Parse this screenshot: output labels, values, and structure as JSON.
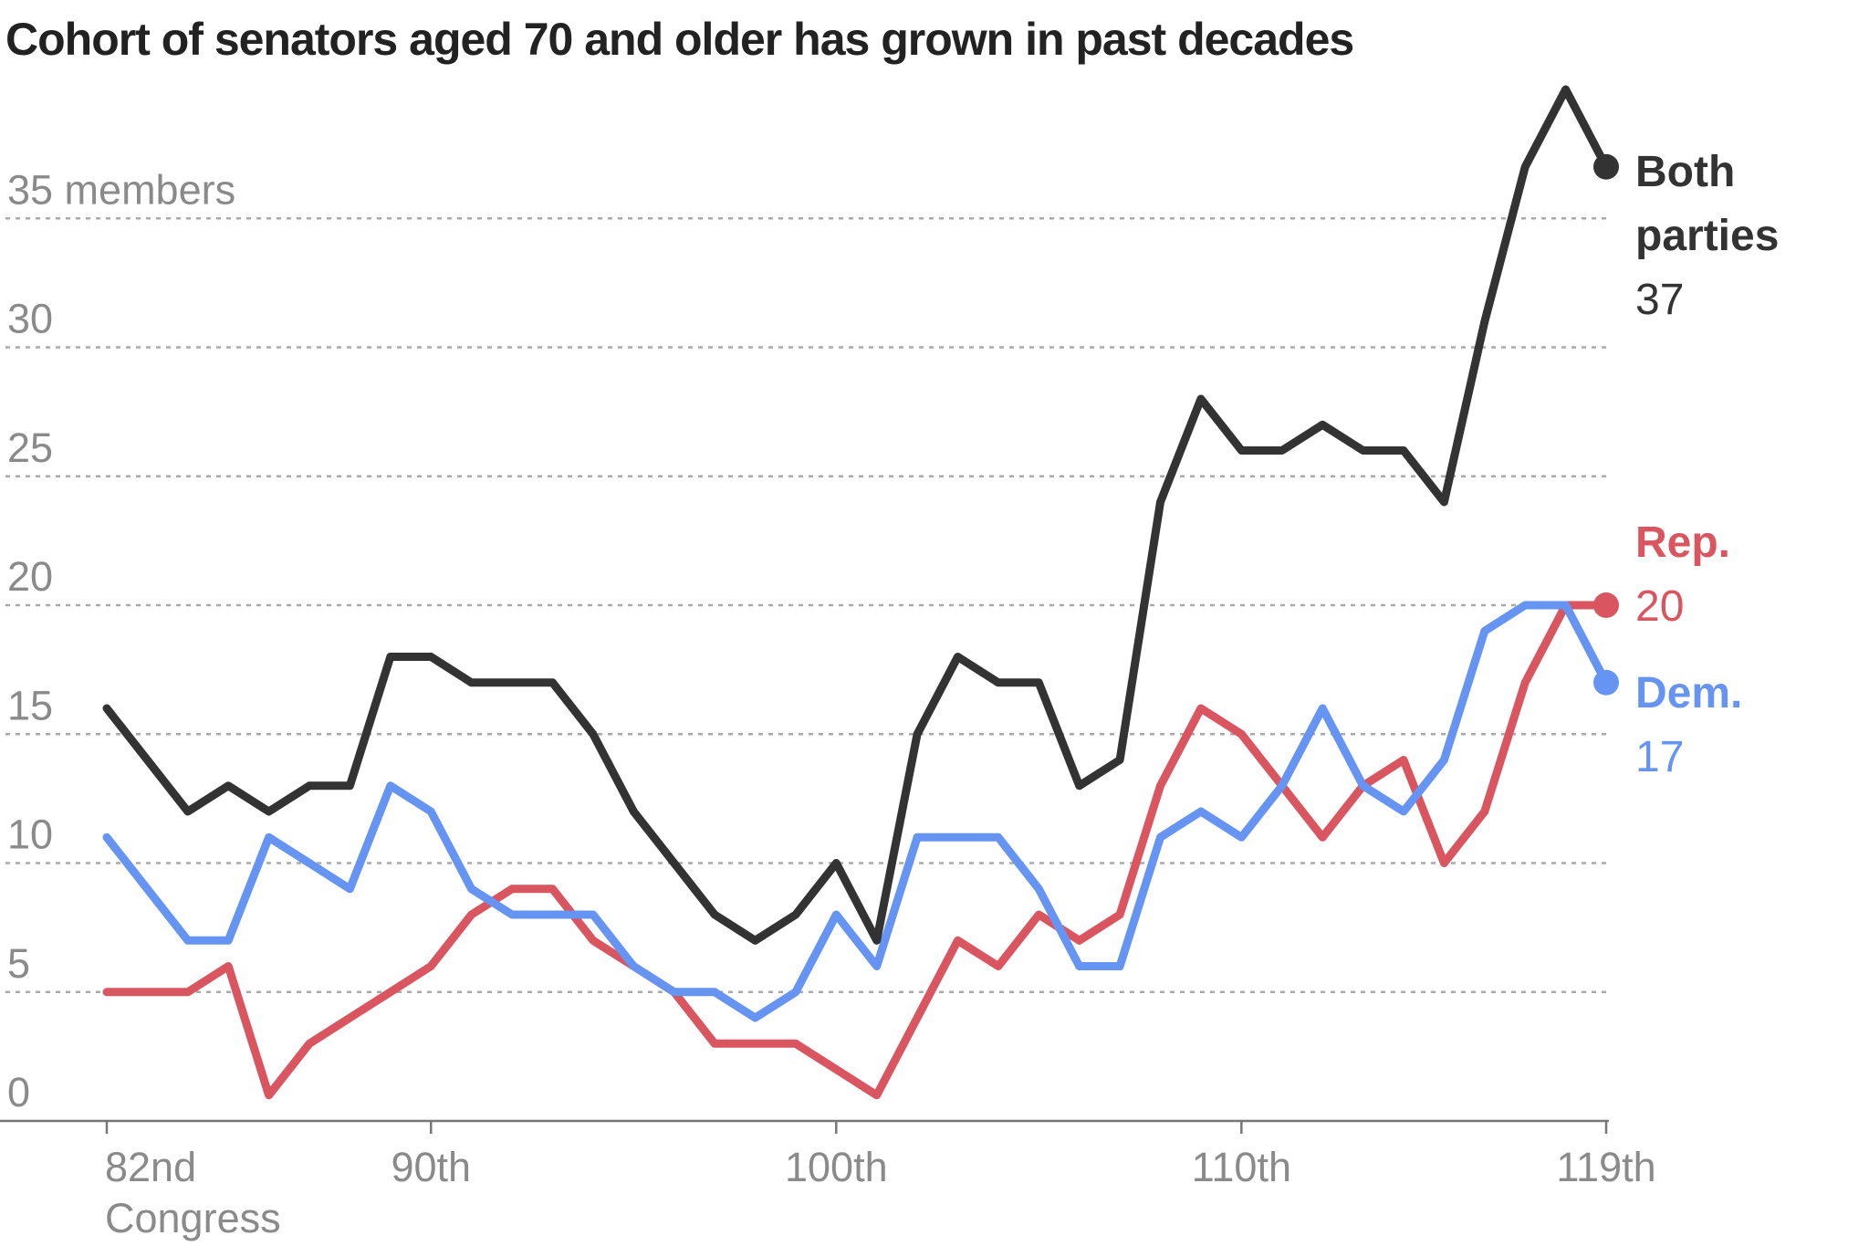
{
  "chart_data": {
    "type": "line",
    "title": "Cohort of senators aged 70 and older has grown in past decades",
    "y_unit_label": "35 members",
    "ylim": [
      0,
      37
    ],
    "y_ticks": [
      {
        "value": 0,
        "label": "0"
      },
      {
        "value": 5,
        "label": "5"
      },
      {
        "value": 10,
        "label": "10"
      },
      {
        "value": 15,
        "label": "15"
      },
      {
        "value": 20,
        "label": "20"
      },
      {
        "value": 25,
        "label": "25"
      },
      {
        "value": 30,
        "label": "30"
      },
      {
        "value": 35,
        "label": "35 members"
      }
    ],
    "x_ticks": [
      {
        "value": 82,
        "label": "82nd",
        "sublabel": "Congress"
      },
      {
        "value": 90,
        "label": "90th"
      },
      {
        "value": 100,
        "label": "100th"
      },
      {
        "value": 110,
        "label": "110th"
      },
      {
        "value": 119,
        "label": "119th"
      }
    ],
    "grid": "dotted horizontal",
    "x": [
      82,
      83,
      84,
      85,
      86,
      87,
      88,
      89,
      90,
      91,
      92,
      93,
      94,
      95,
      96,
      97,
      98,
      99,
      100,
      101,
      102,
      103,
      104,
      105,
      106,
      107,
      108,
      109,
      110,
      111,
      112,
      113,
      114,
      115,
      116,
      117,
      118,
      119
    ],
    "series": [
      {
        "name": "Both parties",
        "color": "#333333",
        "end_label_lines": [
          "Both",
          "parties"
        ],
        "end_value_label": "37",
        "values": [
          16,
          14,
          12,
          13,
          12,
          13,
          13,
          18,
          18,
          17,
          17,
          17,
          15,
          12,
          10,
          8,
          7,
          8,
          10,
          7,
          15,
          18,
          17,
          17,
          13,
          14,
          24,
          28,
          26,
          26,
          27,
          26,
          26,
          24,
          31,
          37,
          40,
          37
        ]
      },
      {
        "name": "Rep.",
        "color": "#d95560",
        "end_label_lines": [
          "Rep."
        ],
        "end_value_label": "20",
        "values": [
          5,
          5,
          5,
          6,
          1,
          3,
          4,
          5,
          6,
          8,
          9,
          9,
          7,
          6,
          5,
          3,
          3,
          3,
          2,
          1,
          4,
          7,
          6,
          8,
          7,
          8,
          13,
          16,
          15,
          13,
          11,
          13,
          14,
          10,
          12,
          17,
          20,
          20
        ]
      },
      {
        "name": "Dem.",
        "color": "#6694f2",
        "end_label_lines": [
          "Dem."
        ],
        "end_value_label": "17",
        "values": [
          11,
          9,
          7,
          7,
          11,
          10,
          9,
          13,
          12,
          9,
          8,
          8,
          8,
          6,
          5,
          5,
          4,
          5,
          8,
          6,
          11,
          11,
          11,
          9,
          6,
          6,
          11,
          12,
          11,
          13,
          16,
          13,
          12,
          14,
          19,
          20,
          20,
          17
        ]
      }
    ]
  }
}
